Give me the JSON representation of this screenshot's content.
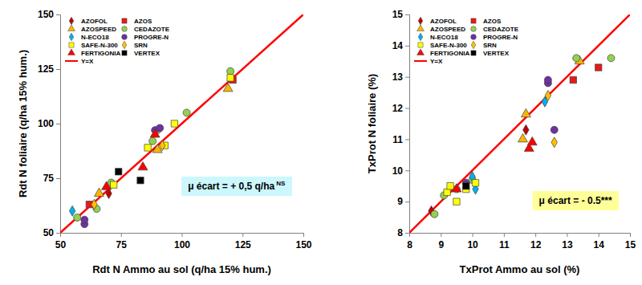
{
  "chart_data": [
    {
      "type": "scatter",
      "x_label": "Rdt N Ammo au sol (q/ha 15% hum.)",
      "y_label": "Rdt N foliaire (q/ha 15% hum.)",
      "xlim": [
        50,
        150
      ],
      "ylim": [
        50,
        150
      ],
      "xticks": [
        50,
        75,
        100,
        125,
        150
      ],
      "yticks": [
        50,
        75,
        100,
        125,
        150
      ],
      "legend": "upper left",
      "annotations": [
        {
          "text": "μ écart = + 0,5 q/ha",
          "superscript": "NS",
          "color": "#ccf7fc"
        }
      ],
      "series": [
        {
          "name": "AZOFOL",
          "color": "#c00000",
          "marker": "diamond",
          "x": [
            70
          ],
          "values": [
            68
          ]
        },
        {
          "name": "AZOS",
          "color": "#e8191b",
          "marker": "square",
          "x": [
            62,
            121
          ],
          "values": [
            63,
            120
          ]
        },
        {
          "name": "AZOSPEED",
          "color": "#f5b800",
          "marker": "triangle",
          "x": [
            66,
            90,
            119
          ],
          "values": [
            68,
            88,
            116
          ]
        },
        {
          "name": "CEDAZOTE",
          "color": "#92d050",
          "marker": "circle",
          "x": [
            57,
            65,
            71,
            88,
            90,
            102,
            120
          ],
          "values": [
            57,
            61,
            73,
            92,
            97,
            105,
            124
          ]
        },
        {
          "name": "N-ECO18",
          "color": "#00b0f0",
          "marker": "diamond",
          "x": [
            55
          ],
          "values": [
            60
          ]
        },
        {
          "name": "PROGRE-N",
          "color": "#7030a0",
          "marker": "circle",
          "x": [
            60,
            60,
            89,
            91
          ],
          "values": [
            54,
            56,
            97,
            98
          ]
        },
        {
          "name": "SAFE-N-300",
          "color": "#ffff00",
          "marker": "square",
          "x": [
            72,
            86,
            93,
            97,
            120
          ],
          "values": [
            72,
            89,
            90,
            100,
            121
          ]
        },
        {
          "name": "SRN",
          "color": "#ffc000",
          "marker": "diamond",
          "x": [
            64,
            92
          ],
          "values": [
            63,
            90
          ]
        },
        {
          "name": "FERTIGONIA",
          "color": "#ff0000",
          "marker": "triangle",
          "x": [
            69,
            84,
            89
          ],
          "values": [
            71,
            80,
            95
          ]
        },
        {
          "name": "VERTEX",
          "color": "#000000",
          "marker": "square",
          "x": [
            74,
            83
          ],
          "values": [
            78,
            74
          ]
        },
        {
          "name": "Y=X",
          "type": "line",
          "color": "#ff0000",
          "x": [
            50,
            150
          ],
          "values": [
            50,
            150
          ]
        }
      ]
    },
    {
      "type": "scatter",
      "x_label": "TxProt Ammo au sol (%)",
      "y_label": "TxProt N foliaire (%)",
      "xlim": [
        8,
        15
      ],
      "ylim": [
        8,
        15
      ],
      "xticks": [
        8,
        9,
        10,
        11,
        12,
        13,
        14,
        15
      ],
      "yticks": [
        8,
        9,
        10,
        11,
        12,
        13,
        14,
        15
      ],
      "legend": "upper left",
      "annotations": [
        {
          "text": "μ écart = - 0.5***",
          "color": "#ffff99"
        }
      ],
      "series": [
        {
          "name": "AZOFOL",
          "color": "#c00000",
          "marker": "diamond",
          "x": [
            8.7,
            11.7
          ],
          "values": [
            8.7,
            11.3
          ]
        },
        {
          "name": "AZOS",
          "color": "#e8191b",
          "marker": "square",
          "x": [
            13.2,
            14.0
          ],
          "values": [
            12.9,
            13.3
          ]
        },
        {
          "name": "AZOSPEED",
          "color": "#f5b800",
          "marker": "triangle",
          "x": [
            11.6,
            11.7,
            13.4
          ],
          "values": [
            11.0,
            11.8,
            13.5
          ]
        },
        {
          "name": "CEDAZOTE",
          "color": "#92d050",
          "marker": "circle",
          "x": [
            8.8,
            9.1,
            9.5,
            10.0,
            13.3,
            14.4
          ],
          "values": [
            8.6,
            9.2,
            9.4,
            9.7,
            13.6,
            13.6
          ]
        },
        {
          "name": "N-ECO18",
          "color": "#00b0f0",
          "marker": "diamond",
          "x": [
            10.0,
            10.1,
            12.3
          ],
          "values": [
            9.8,
            9.4,
            12.2
          ]
        },
        {
          "name": "PROGRE-N",
          "color": "#7030a0",
          "marker": "circle",
          "x": [
            9.8,
            12.4,
            12.4,
            12.6
          ],
          "values": [
            9.6,
            12.8,
            12.9,
            11.3
          ]
        },
        {
          "name": "SAFE-N-300",
          "color": "#ffff00",
          "marker": "square",
          "x": [
            9.2,
            9.3,
            9.5,
            9.8,
            10.1
          ],
          "values": [
            9.3,
            9.5,
            9.0,
            9.4,
            9.6
          ]
        },
        {
          "name": "SRN",
          "color": "#ffc000",
          "marker": "diamond",
          "x": [
            12.4,
            12.6
          ],
          "values": [
            12.4,
            10.9
          ]
        },
        {
          "name": "FERTIGONIA",
          "color": "#ff0000",
          "marker": "triangle",
          "x": [
            9.5,
            11.8,
            11.9
          ],
          "values": [
            9.4,
            10.7,
            10.9
          ]
        },
        {
          "name": "VERTEX",
          "color": "#000000",
          "marker": "square",
          "x": [
            9.8
          ],
          "values": [
            9.5
          ]
        },
        {
          "name": "Y=X",
          "type": "line",
          "color": "#ff0000",
          "x": [
            8,
            15
          ],
          "values": [
            8,
            15
          ]
        }
      ]
    }
  ]
}
